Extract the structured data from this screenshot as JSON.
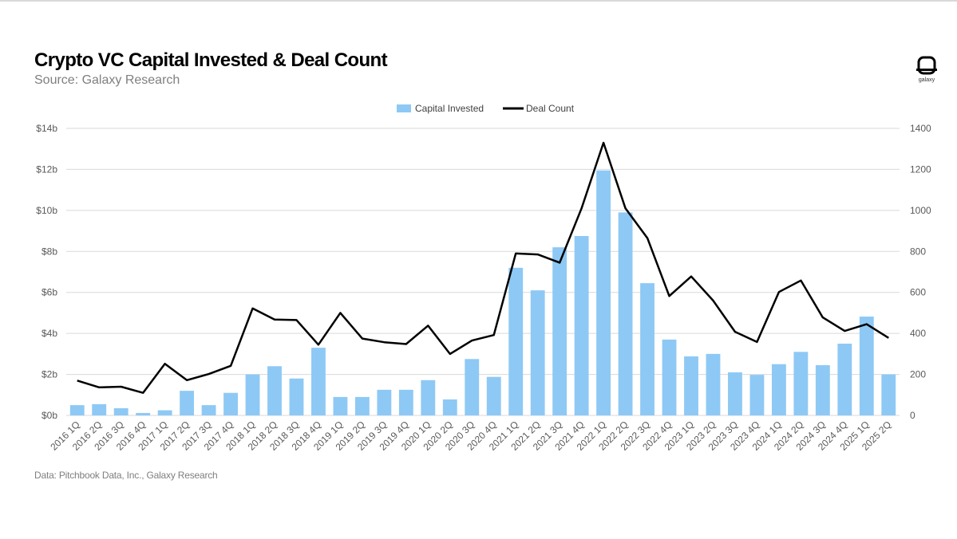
{
  "header": {
    "title": "Crypto VC Capital Invested & Deal Count",
    "subtitle": "Source: Galaxy Research"
  },
  "logo": {
    "icon": "galaxy-logo-icon",
    "word": "galaxy"
  },
  "footer": {
    "note": "Data: Pitchbook Data, Inc., Galaxy Research"
  },
  "colors": {
    "bar": "#8ec9f5",
    "line": "#000000",
    "grid": "#d9d9d9",
    "axis_text": "#595959"
  },
  "chart_data": {
    "type": "bar",
    "title": "Crypto VC Capital Invested & Deal Count",
    "legend_position": "top-center",
    "grid": true,
    "categories": [
      "2016 1Q",
      "2016 2Q",
      "2016 3Q",
      "2016 4Q",
      "2017 1Q",
      "2017 2Q",
      "2017 3Q",
      "2017 4Q",
      "2018 1Q",
      "2018 2Q",
      "2018 3Q",
      "2018 4Q",
      "2019 1Q",
      "2019 2Q",
      "2019 3Q",
      "2019 4Q",
      "2020 1Q",
      "2020 2Q",
      "2020 3Q",
      "2020 4Q",
      "2021 1Q",
      "2021 2Q",
      "2021 3Q",
      "2021 4Q",
      "2022 1Q",
      "2022 2Q",
      "2022 3Q",
      "2022 4Q",
      "2023 1Q",
      "2023 2Q",
      "2023 3Q",
      "2023 4Q",
      "2024 1Q",
      "2024 2Q",
      "2024 3Q",
      "2024 4Q",
      "2025 1Q",
      "2025 2Q"
    ],
    "series": [
      {
        "name": "Capital Invested",
        "type": "bar",
        "axis": "left",
        "values": [
          0.5,
          0.55,
          0.35,
          0.12,
          0.25,
          1.2,
          0.5,
          1.1,
          2.0,
          2.4,
          1.8,
          3.3,
          0.9,
          0.9,
          1.25,
          1.25,
          1.72,
          0.78,
          2.75,
          1.88,
          7.2,
          6.1,
          8.2,
          8.75,
          11.95,
          9.9,
          6.45,
          3.7,
          2.88,
          3.0,
          2.1,
          1.98,
          2.5,
          3.1,
          2.45,
          3.5,
          4.82,
          2.0
        ]
      },
      {
        "name": "Deal Count",
        "type": "line",
        "axis": "right",
        "values": [
          170,
          137,
          140,
          110,
          252,
          172,
          202,
          242,
          522,
          468,
          465,
          345,
          500,
          375,
          357,
          348,
          438,
          300,
          365,
          392,
          790,
          785,
          745,
          1010,
          1330,
          1010,
          865,
          582,
          678,
          560,
          408,
          358,
          602,
          658,
          478,
          412,
          445,
          378
        ]
      }
    ],
    "y_left": {
      "ticks": [
        "$0b",
        "$2b",
        "$4b",
        "$6b",
        "$8b",
        "$10b",
        "$12b",
        "$14b"
      ],
      "ylim": [
        0,
        14
      ]
    },
    "y_right": {
      "ticks": [
        "0",
        "200",
        "400",
        "600",
        "800",
        "1000",
        "1200",
        "1400"
      ],
      "ylim": [
        0,
        1400
      ]
    }
  }
}
